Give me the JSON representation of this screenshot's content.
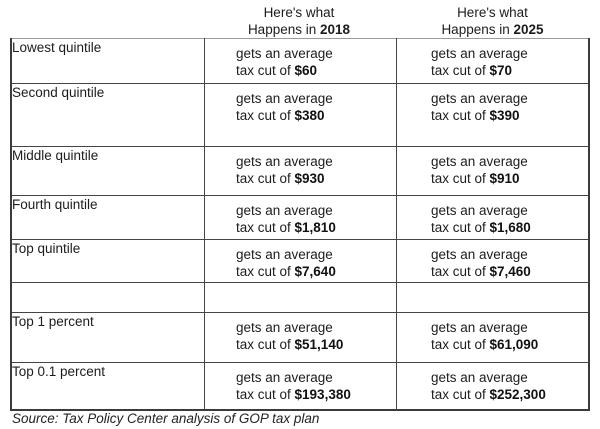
{
  "page": {
    "background": "#ffffff",
    "text_color": "#1c1c1c",
    "border_color": "#454545",
    "top_border_color": "#9b9b9b"
  },
  "header": {
    "col2018": {
      "line1": "Here's what",
      "line2_prefix": "Happens in ",
      "year": "2018"
    },
    "col2025": {
      "line1": "Here's what",
      "line2_prefix": "Happens in ",
      "year": "2025"
    }
  },
  "table": {
    "rows": [
      {
        "label": "Lowest quintile",
        "c2018": {
          "line1": "gets an average",
          "line2": "tax cut of ",
          "amount": "$60"
        },
        "c2025": {
          "line1": "gets an average",
          "line2": "tax cut of ",
          "amount": "$70"
        }
      },
      {
        "label": "Second quintile",
        "c2018": {
          "line1": "gets an average",
          "line2": "tax cut of ",
          "amount": "$380"
        },
        "c2025": {
          "line1": "gets an average",
          "line2": "tax cut of ",
          "amount": "$390"
        }
      },
      {
        "label": "Middle quintile",
        "c2018": {
          "line1": "gets an average",
          "line2": "tax cut of ",
          "amount": "$930"
        },
        "c2025": {
          "line1": "gets an average",
          "line2": "tax cut of ",
          "amount": "$910"
        }
      },
      {
        "label": "Fourth quintile",
        "c2018": {
          "line1": "gets an average",
          "line2": "tax cut of ",
          "amount": "$1,810"
        },
        "c2025": {
          "line1": "gets an average",
          "line2": "tax cut of ",
          "amount": "$1,680"
        }
      },
      {
        "label": "Top quintile",
        "c2018": {
          "line1": "gets an average",
          "line2": "tax cut of ",
          "amount": "$7,640"
        },
        "c2025": {
          "line1": "gets an average",
          "line2": "tax cut of ",
          "amount": "$7,460"
        }
      },
      {
        "label": "",
        "c2018": {
          "line1": "",
          "line2": "",
          "amount": ""
        },
        "c2025": {
          "line1": "",
          "line2": "",
          "amount": ""
        }
      },
      {
        "label": "Top 1 percent",
        "c2018": {
          "line1": "gets an average",
          "line2": "tax cut of ",
          "amount": "$51,140"
        },
        "c2025": {
          "line1": "gets an average",
          "line2": "tax cut of ",
          "amount": "$61,090"
        }
      },
      {
        "label": "Top 0.1 percent",
        "c2018": {
          "line1": "gets an average",
          "line2": "tax cut of ",
          "amount": "$193,380"
        },
        "c2025": {
          "line1": "gets an average",
          "line2": "tax cut of ",
          "amount": "$252,300"
        }
      }
    ]
  },
  "footer": {
    "source": "Source: Tax Policy Center analysis of GOP tax plan"
  },
  "chart_data": {
    "type": "table",
    "columns": [
      "",
      "Here's what Happens in 2018",
      "Here's what Happens in 2025"
    ],
    "categories": [
      "Lowest quintile",
      "Second quintile",
      "Middle quintile",
      "Fourth quintile",
      "Top quintile",
      "Top 1 percent",
      "Top 0.1 percent"
    ],
    "series": [
      {
        "name": "2018",
        "values": [
          60,
          380,
          930,
          1810,
          7640,
          51140,
          193380
        ]
      },
      {
        "name": "2025",
        "values": [
          70,
          390,
          910,
          1680,
          7460,
          61090,
          252300
        ]
      }
    ],
    "cell_text_pattern": "gets an average tax cut of {amount}",
    "value_unit": "USD average tax cut",
    "source": "Source: Tax Policy Center analysis of GOP tax plan"
  }
}
